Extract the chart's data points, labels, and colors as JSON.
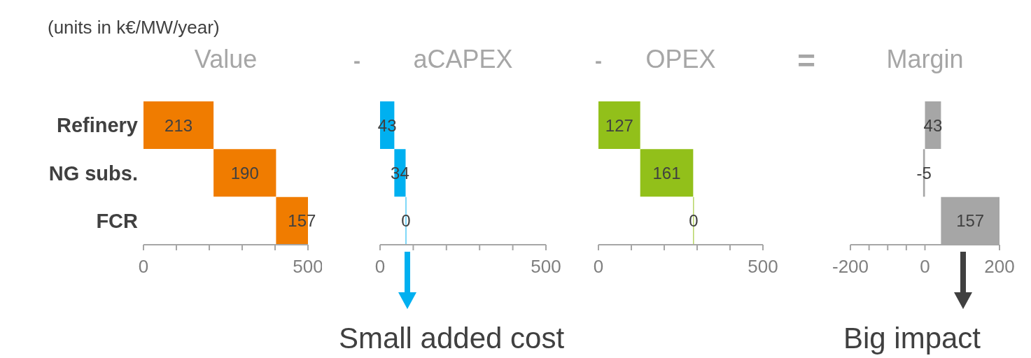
{
  "chart_data": [
    {
      "type": "bar",
      "orientation": "horizontal",
      "title": "Value",
      "categories": [
        "Refinery",
        "NG subs.",
        "FCR"
      ],
      "series": [
        {
          "color": "#f07c00",
          "base": [
            0,
            213,
            403
          ],
          "values": [
            213,
            190,
            157
          ]
        }
      ],
      "data_labels": true,
      "xlim": [
        0,
        500
      ],
      "xticks": [
        0,
        {
          "value": 100,
          "label": null
        },
        {
          "value": 200,
          "label": null
        },
        {
          "value": 300,
          "label": null
        },
        {
          "value": 400,
          "label": null
        },
        500
      ],
      "annotations": [
        "(units in k€/MW/year)"
      ]
    },
    {
      "type": "bar",
      "orientation": "horizontal",
      "title": "aCAPEX",
      "categories": [
        null,
        null,
        null
      ],
      "series": [
        {
          "color": "#00b0f0",
          "base": [
            0,
            43,
            77
          ],
          "values": [
            43,
            34,
            0
          ]
        }
      ],
      "data_labels": true,
      "xlim": [
        0,
        500
      ],
      "xticks": [
        0,
        {
          "value": 100,
          "label": null
        },
        {
          "value": 200,
          "label": null
        },
        {
          "value": 300,
          "label": null
        },
        {
          "value": 400,
          "label": null
        },
        500
      ],
      "tick_labels": "x",
      "annotations": [
        "-",
        "Small added cost"
      ]
    },
    {
      "type": "bar",
      "orientation": "horizontal",
      "title": "OPEX",
      "categories": [
        null,
        null,
        null
      ],
      "series": [
        {
          "color": "#92c01a",
          "base": [
            0,
            127,
            288
          ],
          "values": [
            127,
            161,
            0
          ]
        }
      ],
      "data_labels": true,
      "xlim": [
        0,
        500
      ],
      "xticks": [
        0,
        {
          "value": 100,
          "label": null
        },
        {
          "value": 200,
          "label": null
        },
        {
          "value": 300,
          "label": null
        },
        {
          "value": 400,
          "label": null
        },
        500
      ],
      "tick_labels": "x",
      "annotations": [
        "-"
      ]
    },
    {
      "type": "bar",
      "orientation": "horizontal",
      "title": "Margin",
      "categories": [
        null,
        null,
        null
      ],
      "series": [
        {
          "color": "#a6a6a6",
          "base": [
            0,
            0,
            43
          ],
          "values": [
            43,
            -5,
            157
          ]
        }
      ],
      "data_labels": true,
      "xlim": [
        -200,
        200
      ],
      "xticks": [
        -200,
        {
          "value": -150,
          "label": null
        },
        {
          "value": -100,
          "label": null
        },
        {
          "value": -50,
          "label": null
        },
        0,
        200
      ],
      "tick_labels": "x",
      "annotations": [
        "=",
        "Big impact"
      ]
    }
  ]
}
